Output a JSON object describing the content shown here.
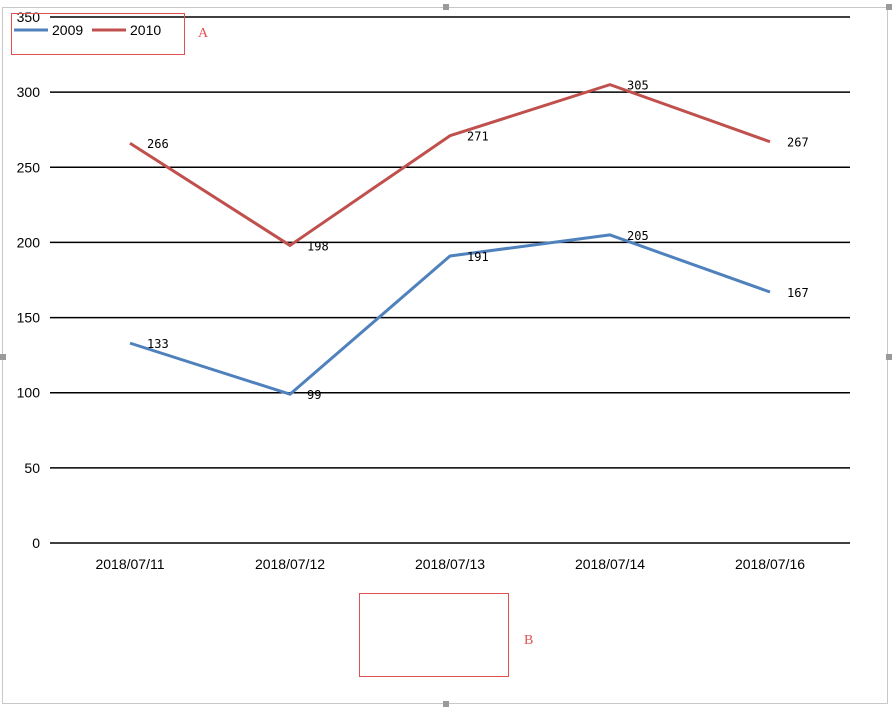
{
  "chart_data": {
    "type": "line",
    "categories": [
      "2018/07/11",
      "2018/07/12",
      "2018/07/13",
      "2018/07/14",
      "2018/07/16"
    ],
    "series": [
      {
        "name": "2009",
        "values": [
          133,
          99,
          191,
          205,
          167
        ],
        "color": "#4f81bd"
      },
      {
        "name": "2010",
        "values": [
          266,
          198,
          271,
          305,
          267
        ],
        "color": "#c0504d"
      }
    ],
    "ylim": [
      0,
      350
    ],
    "yticks": [
      0,
      50,
      100,
      150,
      200,
      250,
      300,
      350
    ],
    "grid": true,
    "legend": "top-left",
    "data_labels": true
  },
  "annotations": {
    "a_label": "A",
    "b_label": "B"
  }
}
